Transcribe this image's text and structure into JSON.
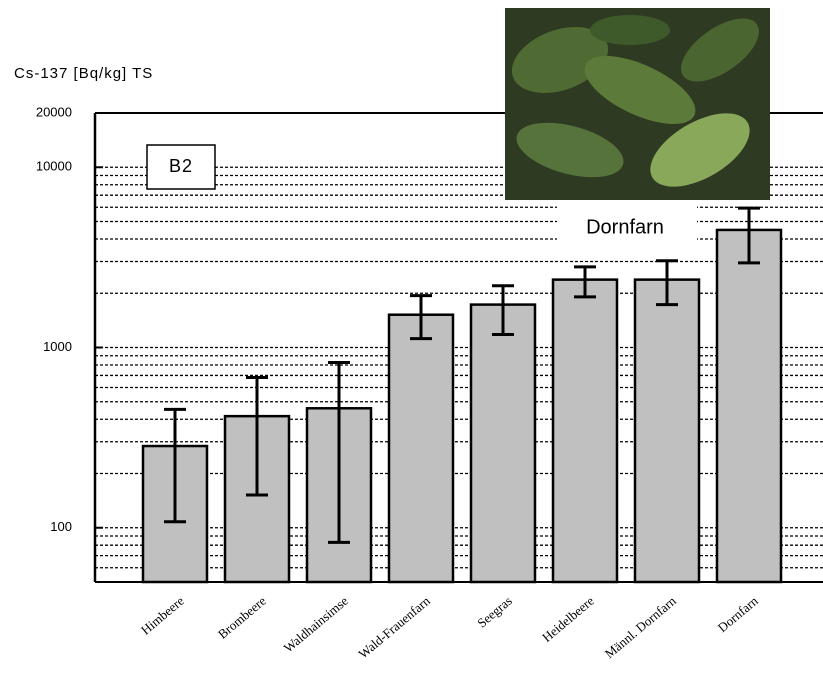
{
  "chart_data": {
    "type": "bar",
    "y_label": "Cs-137 [Bq/kg] TS",
    "panel_label": "B2",
    "photo_caption": "Dornfarn",
    "categories": [
      "Himbeere",
      "Brombeere",
      "Waldhainsimse",
      "Wald-Frauenfarn",
      "Seegras",
      "Heidelbeere",
      "Männl. Dornfarn",
      "Dornfarn"
    ],
    "values": [
      284,
      416,
      460,
      1520,
      1730,
      2380,
      2380,
      4490
    ],
    "lower": [
      108,
      152,
      83,
      1120,
      1180,
      1910,
      1730,
      2950
    ],
    "upper": [
      454,
      682,
      826,
      1940,
      2200,
      2800,
      3030,
      5930
    ],
    "color": "#c0c0c0",
    "log_scale": true,
    "ylim": [
      50,
      20000
    ],
    "yticks": [
      100,
      1000,
      10000,
      20000
    ],
    "grid": true
  }
}
